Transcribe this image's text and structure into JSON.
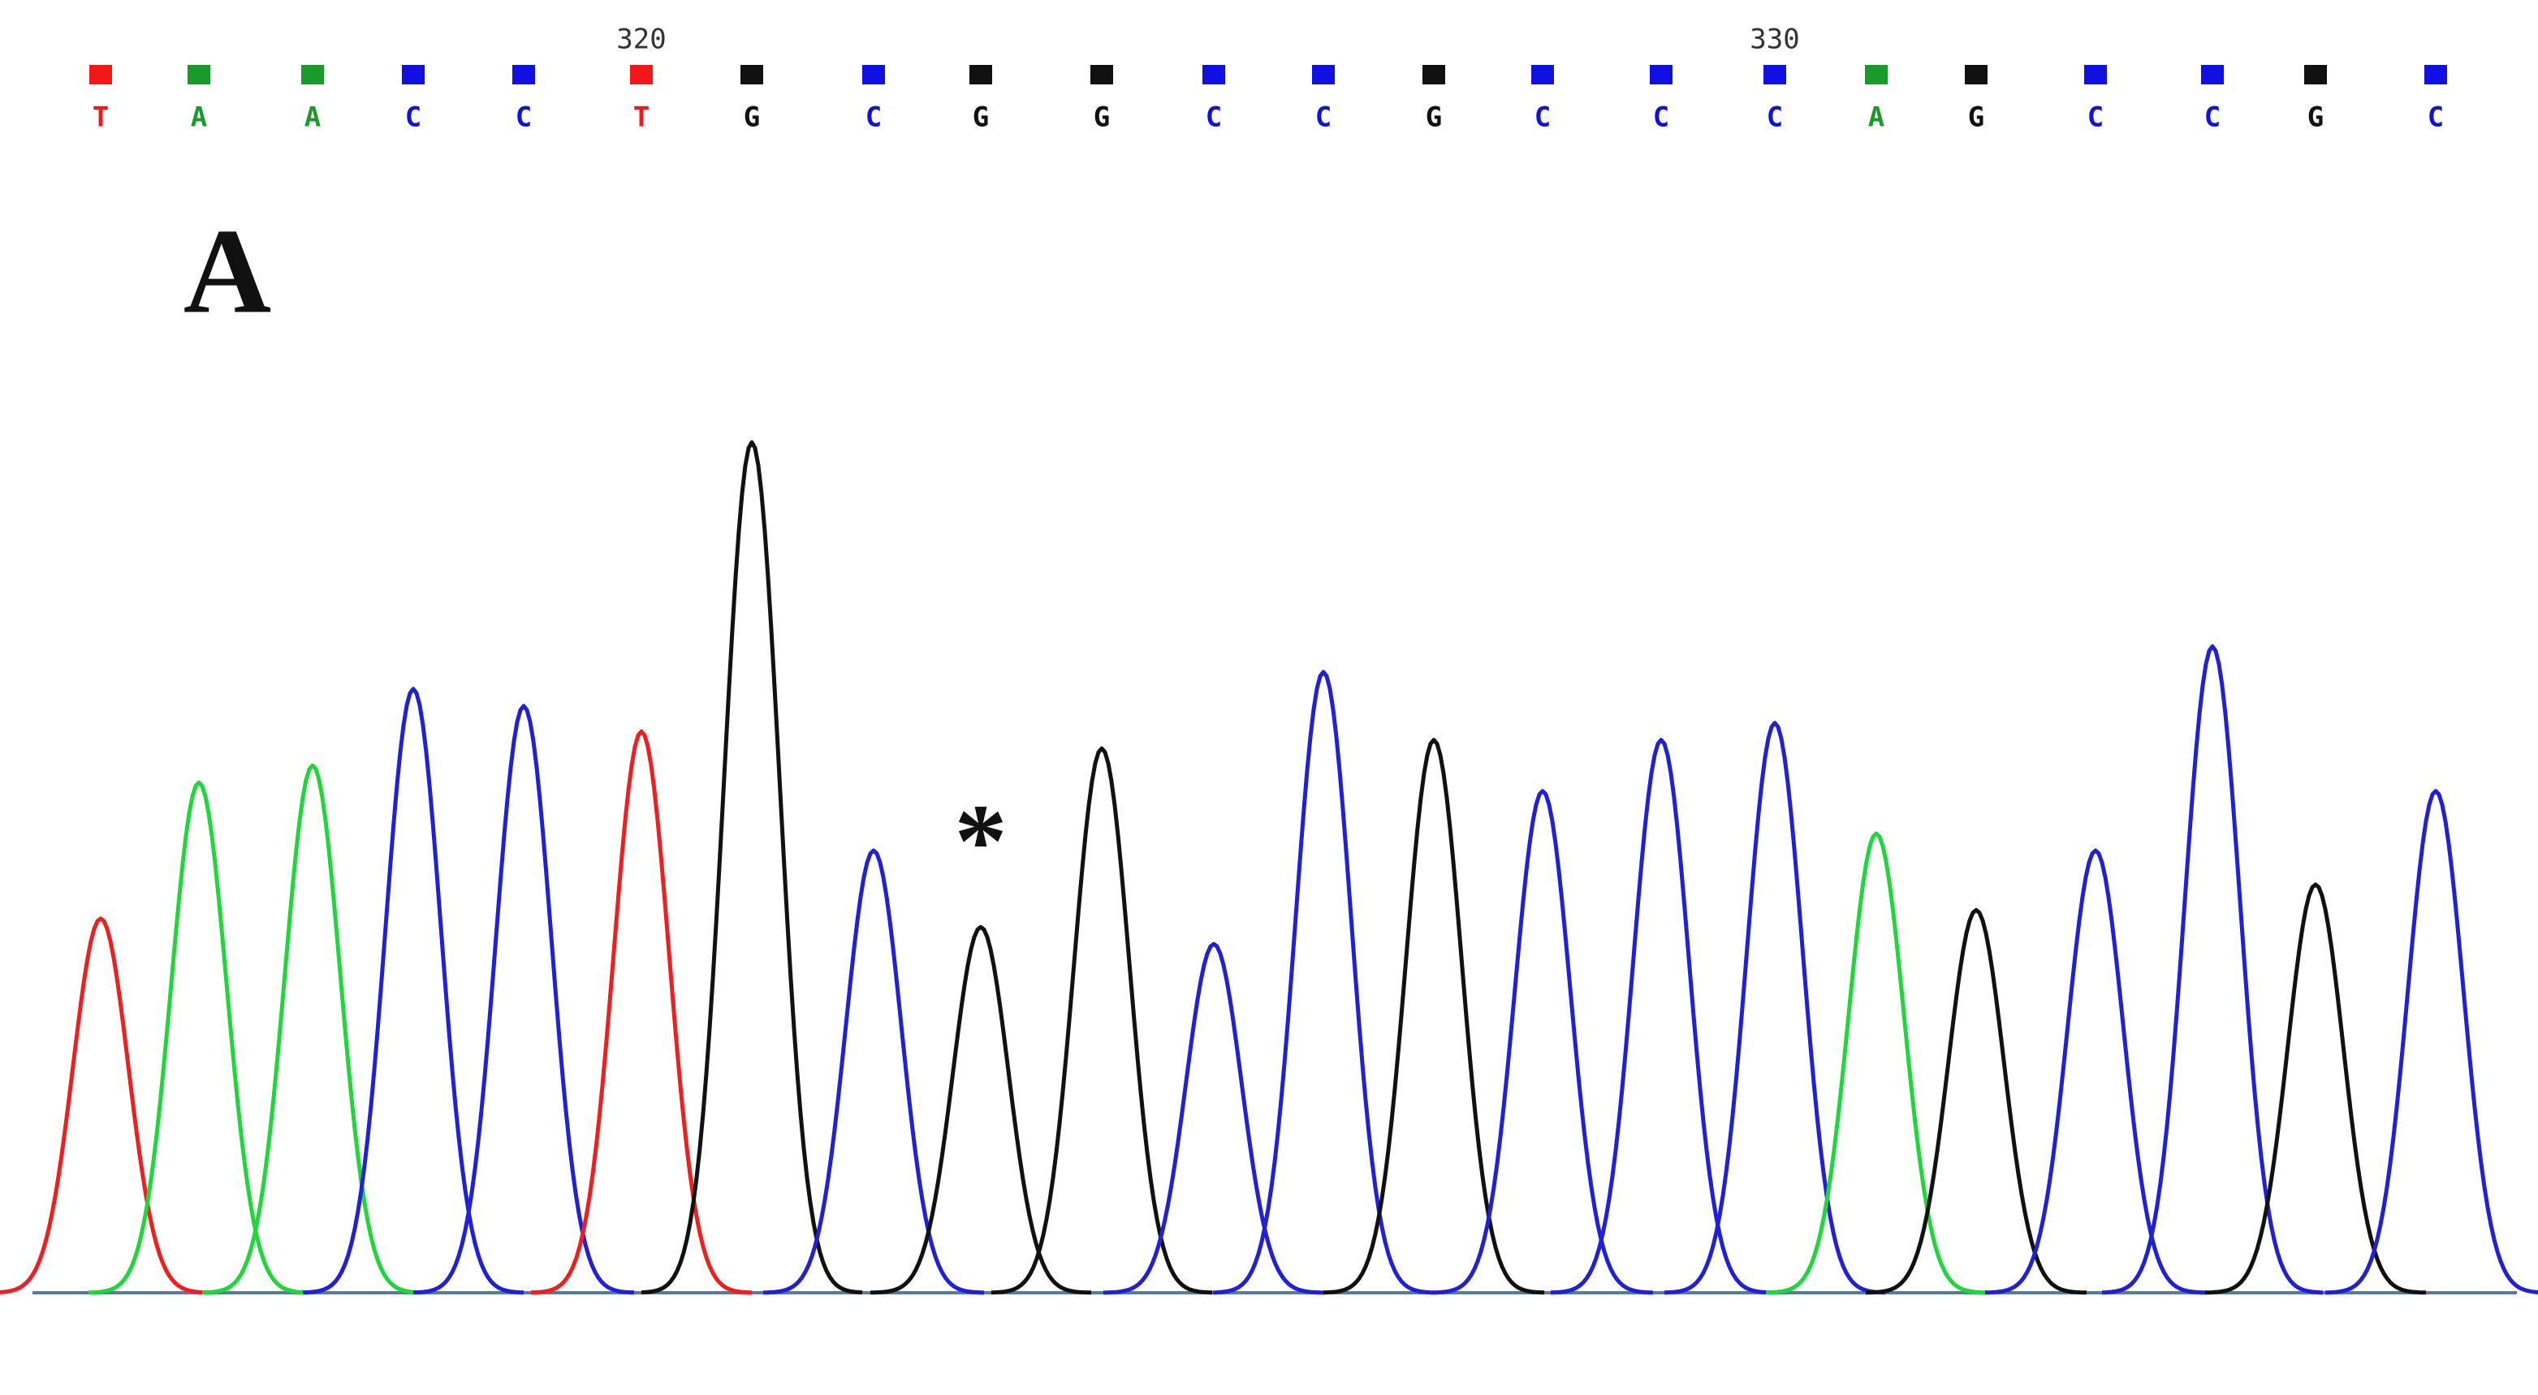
{
  "chart_data": {
    "type": "chromatogram",
    "panel_label": "A",
    "annotation": "*",
    "categories": [
      "T",
      "A",
      "A",
      "C",
      "C",
      "T",
      "G",
      "C",
      "G",
      "G",
      "C",
      "C",
      "G",
      "C",
      "C",
      "C",
      "A",
      "G",
      "C",
      "C",
      "G",
      "C"
    ],
    "values": [
      44,
      60,
      62,
      71,
      69,
      66,
      100,
      52,
      43,
      64,
      41,
      73,
      65,
      59,
      65,
      67,
      54,
      45,
      52,
      76,
      48,
      59
    ],
    "ylim": [
      0,
      100
    ],
    "position_ticks": [
      320,
      330
    ],
    "colors": {
      "A": "#1ed83a",
      "C": "#2020d8",
      "G": "#111111",
      "T": "#f01e1e"
    },
    "marker_colors": {
      "A": "#1a9a2a",
      "C": "#1010e0",
      "G": "#111111",
      "T": "#f01818"
    }
  }
}
